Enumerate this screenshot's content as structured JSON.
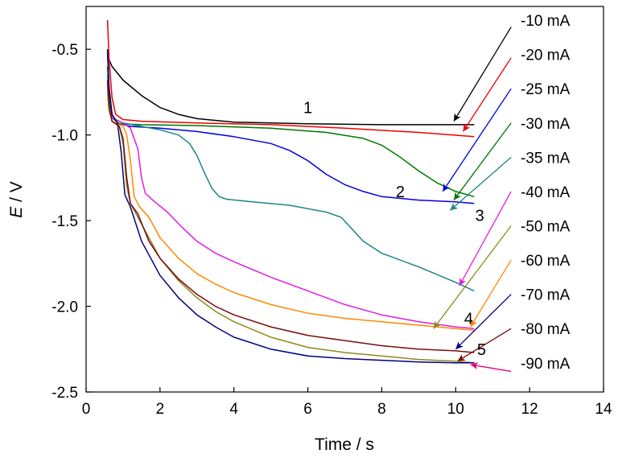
{
  "chart_data": {
    "type": "line",
    "xlabel": "Time / s",
    "ylabel_italic": "E",
    "ylabel_rest": " / V",
    "xlim": [
      0,
      14
    ],
    "ylim": [
      -2.5,
      -0.25
    ],
    "xticks": [
      0,
      2,
      4,
      6,
      8,
      10,
      12,
      14
    ],
    "yticks": [
      -2.5,
      -2.0,
      -1.5,
      -1.0,
      -0.5
    ],
    "ytick_labels": [
      "-2.5",
      "-2.0",
      "-1.5",
      "-1.0",
      "-0.5"
    ],
    "grid": false,
    "legend_position": "right",
    "curve_labels": [
      {
        "text": "1",
        "x": 6.0,
        "y": -0.84
      },
      {
        "text": "2",
        "x": 8.5,
        "y": -1.33
      },
      {
        "text": "3",
        "x": 10.65,
        "y": -1.47
      },
      {
        "text": "4",
        "x": 10.35,
        "y": -2.07
      },
      {
        "text": "5",
        "x": 10.7,
        "y": -2.25
      }
    ],
    "series": [
      {
        "name": "-10 mA",
        "color": "#000000",
        "points": [
          [
            0.6,
            -0.55
          ],
          [
            0.7,
            -0.6
          ],
          [
            1.0,
            -0.68
          ],
          [
            1.5,
            -0.77
          ],
          [
            2.0,
            -0.84
          ],
          [
            2.5,
            -0.88
          ],
          [
            3.0,
            -0.905
          ],
          [
            4.0,
            -0.925
          ],
          [
            6.0,
            -0.935
          ],
          [
            8.0,
            -0.94
          ],
          [
            10.0,
            -0.94
          ],
          [
            10.5,
            -0.94
          ]
        ],
        "arrow_from": [
          11.5,
          -0.37
        ],
        "arrow_to": [
          9.95,
          -0.92
        ],
        "legend_y": -0.33
      },
      {
        "name": "-20 mA",
        "color": "#ee0000",
        "points": [
          [
            0.58,
            -0.33
          ],
          [
            0.62,
            -0.55
          ],
          [
            0.7,
            -0.78
          ],
          [
            0.8,
            -0.88
          ],
          [
            1.0,
            -0.91
          ],
          [
            1.5,
            -0.92
          ],
          [
            3.0,
            -0.93
          ],
          [
            5.0,
            -0.94
          ],
          [
            7.0,
            -0.96
          ],
          [
            9.0,
            -0.985
          ],
          [
            10.5,
            -1.01
          ]
        ],
        "arrow_from": [
          11.5,
          -0.55
        ],
        "arrow_to": [
          10.2,
          -0.98
        ],
        "legend_y": -0.53
      },
      {
        "name": "-25 mA",
        "color": "#0000dd",
        "points": [
          [
            0.58,
            -0.52
          ],
          [
            0.62,
            -0.72
          ],
          [
            0.7,
            -0.88
          ],
          [
            0.85,
            -0.93
          ],
          [
            1.2,
            -0.95
          ],
          [
            2.0,
            -0.96
          ],
          [
            3.0,
            -0.98
          ],
          [
            4.0,
            -1.01
          ],
          [
            5.0,
            -1.05
          ],
          [
            5.5,
            -1.09
          ],
          [
            6.0,
            -1.15
          ],
          [
            6.5,
            -1.23
          ],
          [
            7.0,
            -1.29
          ],
          [
            7.5,
            -1.33
          ],
          [
            8.0,
            -1.36
          ],
          [
            9.0,
            -1.38
          ],
          [
            10.0,
            -1.39
          ],
          [
            10.5,
            -1.4
          ]
        ],
        "arrow_from": [
          11.5,
          -0.73
        ],
        "arrow_to": [
          9.65,
          -1.33
        ],
        "legend_y": -0.73
      },
      {
        "name": "-30 mA",
        "color": "#007700",
        "points": [
          [
            0.58,
            -0.6
          ],
          [
            0.62,
            -0.78
          ],
          [
            0.7,
            -0.9
          ],
          [
            0.9,
            -0.935
          ],
          [
            1.5,
            -0.94
          ],
          [
            3.0,
            -0.945
          ],
          [
            5.0,
            -0.96
          ],
          [
            6.5,
            -0.985
          ],
          [
            7.5,
            -1.02
          ],
          [
            8.0,
            -1.06
          ],
          [
            8.5,
            -1.13
          ],
          [
            9.0,
            -1.21
          ],
          [
            9.5,
            -1.28
          ],
          [
            10.0,
            -1.33
          ],
          [
            10.5,
            -1.36
          ]
        ],
        "arrow_from": [
          11.5,
          -0.93
        ],
        "arrow_to": [
          9.95,
          -1.38
        ],
        "legend_y": -0.93
      },
      {
        "name": "-35 mA",
        "color": "#1d8585",
        "points": [
          [
            0.58,
            -0.65
          ],
          [
            0.62,
            -0.82
          ],
          [
            0.7,
            -0.9
          ],
          [
            1.0,
            -0.93
          ],
          [
            1.5,
            -0.95
          ],
          [
            2.0,
            -0.97
          ],
          [
            2.5,
            -1.0
          ],
          [
            2.8,
            -1.05
          ],
          [
            3.0,
            -1.12
          ],
          [
            3.2,
            -1.22
          ],
          [
            3.4,
            -1.31
          ],
          [
            3.6,
            -1.36
          ],
          [
            3.8,
            -1.375
          ],
          [
            4.5,
            -1.39
          ],
          [
            5.5,
            -1.41
          ],
          [
            6.5,
            -1.45
          ],
          [
            6.9,
            -1.48
          ],
          [
            7.2,
            -1.55
          ],
          [
            7.5,
            -1.62
          ],
          [
            8.0,
            -1.69
          ],
          [
            9.0,
            -1.77
          ],
          [
            10.0,
            -1.86
          ],
          [
            10.5,
            -1.91
          ]
        ],
        "arrow_from": [
          11.5,
          -1.13
        ],
        "arrow_to": [
          9.85,
          -1.44
        ],
        "legend_y": -1.13
      },
      {
        "name": "-40 mA",
        "color": "#e31ce3",
        "points": [
          [
            0.58,
            -0.7
          ],
          [
            0.62,
            -0.84
          ],
          [
            0.7,
            -0.9
          ],
          [
            1.0,
            -0.93
          ],
          [
            1.2,
            -0.96
          ],
          [
            1.4,
            -1.08
          ],
          [
            1.5,
            -1.25
          ],
          [
            1.6,
            -1.34
          ],
          [
            1.8,
            -1.38
          ],
          [
            2.2,
            -1.45
          ],
          [
            2.6,
            -1.54
          ],
          [
            3.0,
            -1.62
          ],
          [
            3.5,
            -1.69
          ],
          [
            4.0,
            -1.74
          ],
          [
            5.0,
            -1.83
          ],
          [
            6.0,
            -1.91
          ],
          [
            7.0,
            -1.99
          ],
          [
            8.0,
            -2.05
          ],
          [
            9.0,
            -2.09
          ],
          [
            10.0,
            -2.12
          ],
          [
            10.5,
            -2.13
          ]
        ],
        "arrow_from": [
          11.5,
          -1.33
        ],
        "arrow_to": [
          10.1,
          -1.88
        ],
        "legend_y": -1.33
      },
      {
        "name": "-50 mA",
        "color": "#8b8b1e",
        "points": [
          [
            0.58,
            -0.75
          ],
          [
            0.62,
            -0.86
          ],
          [
            0.7,
            -0.92
          ],
          [
            0.9,
            -0.95
          ],
          [
            1.0,
            -1.05
          ],
          [
            1.1,
            -1.3
          ],
          [
            1.2,
            -1.4
          ],
          [
            1.5,
            -1.52
          ],
          [
            2.0,
            -1.72
          ],
          [
            2.5,
            -1.85
          ],
          [
            3.0,
            -1.95
          ],
          [
            3.5,
            -2.03
          ],
          [
            4.0,
            -2.09
          ],
          [
            5.0,
            -2.18
          ],
          [
            6.0,
            -2.24
          ],
          [
            7.0,
            -2.27
          ],
          [
            8.0,
            -2.29
          ],
          [
            9.0,
            -2.31
          ],
          [
            10.0,
            -2.32
          ],
          [
            10.5,
            -2.33
          ]
        ],
        "arrow_from": [
          11.5,
          -1.53
        ],
        "arrow_to": [
          9.4,
          -2.13
        ],
        "legend_y": -1.53
      },
      {
        "name": "-60 mA",
        "color": "#ff8800",
        "points": [
          [
            0.58,
            -0.72
          ],
          [
            0.62,
            -0.85
          ],
          [
            0.7,
            -0.92
          ],
          [
            1.0,
            -0.95
          ],
          [
            1.1,
            -1.0
          ],
          [
            1.2,
            -1.15
          ],
          [
            1.3,
            -1.36
          ],
          [
            1.45,
            -1.42
          ],
          [
            1.7,
            -1.48
          ],
          [
            2.0,
            -1.6
          ],
          [
            2.5,
            -1.72
          ],
          [
            3.0,
            -1.81
          ],
          [
            3.5,
            -1.87
          ],
          [
            4.0,
            -1.92
          ],
          [
            5.0,
            -1.99
          ],
          [
            6.0,
            -2.04
          ],
          [
            7.0,
            -2.07
          ],
          [
            8.0,
            -2.09
          ],
          [
            9.0,
            -2.11
          ],
          [
            10.0,
            -2.13
          ],
          [
            10.5,
            -2.14
          ]
        ],
        "arrow_from": [
          11.5,
          -1.73
        ],
        "arrow_to": [
          10.4,
          -2.12
        ],
        "legend_y": -1.73
      },
      {
        "name": "-70 mA",
        "color": "#000080",
        "points": [
          [
            0.58,
            -0.5
          ],
          [
            0.62,
            -0.72
          ],
          [
            0.7,
            -0.88
          ],
          [
            0.85,
            -0.93
          ],
          [
            0.95,
            -1.1
          ],
          [
            1.05,
            -1.35
          ],
          [
            1.2,
            -1.42
          ],
          [
            1.5,
            -1.62
          ],
          [
            2.0,
            -1.82
          ],
          [
            2.5,
            -1.95
          ],
          [
            3.0,
            -2.05
          ],
          [
            3.5,
            -2.12
          ],
          [
            4.0,
            -2.18
          ],
          [
            5.0,
            -2.25
          ],
          [
            6.0,
            -2.29
          ],
          [
            7.0,
            -2.305
          ],
          [
            8.0,
            -2.315
          ],
          [
            9.0,
            -2.325
          ],
          [
            10.0,
            -2.33
          ],
          [
            10.5,
            -2.33
          ]
        ],
        "arrow_from": [
          11.5,
          -1.93
        ],
        "arrow_to": [
          10.0,
          -2.25
        ],
        "legend_y": -1.93
      },
      {
        "name": "-80 mA",
        "color": "#7a0c0c",
        "points": [
          [
            0.58,
            -0.68
          ],
          [
            0.62,
            -0.83
          ],
          [
            0.7,
            -0.92
          ],
          [
            0.9,
            -0.95
          ],
          [
            1.0,
            -1.02
          ],
          [
            1.1,
            -1.25
          ],
          [
            1.2,
            -1.4
          ],
          [
            1.4,
            -1.46
          ],
          [
            1.7,
            -1.62
          ],
          [
            2.0,
            -1.72
          ],
          [
            2.5,
            -1.84
          ],
          [
            3.0,
            -1.93
          ],
          [
            3.5,
            -2.0
          ],
          [
            4.0,
            -2.05
          ],
          [
            5.0,
            -2.12
          ],
          [
            6.0,
            -2.17
          ],
          [
            7.0,
            -2.2
          ],
          [
            8.0,
            -2.23
          ],
          [
            9.0,
            -2.25
          ],
          [
            10.0,
            -2.26
          ],
          [
            10.5,
            -2.27
          ]
        ],
        "arrow_from": [
          11.5,
          -2.13
        ],
        "arrow_to": [
          10.05,
          -2.32
        ],
        "legend_y": -2.13
      },
      {
        "name": "-90 mA",
        "color": "#e8007a",
        "points": [],
        "arrow_from": [
          11.5,
          -2.38
        ],
        "arrow_to": [
          10.4,
          -2.34
        ],
        "legend_y": -2.33
      }
    ]
  }
}
